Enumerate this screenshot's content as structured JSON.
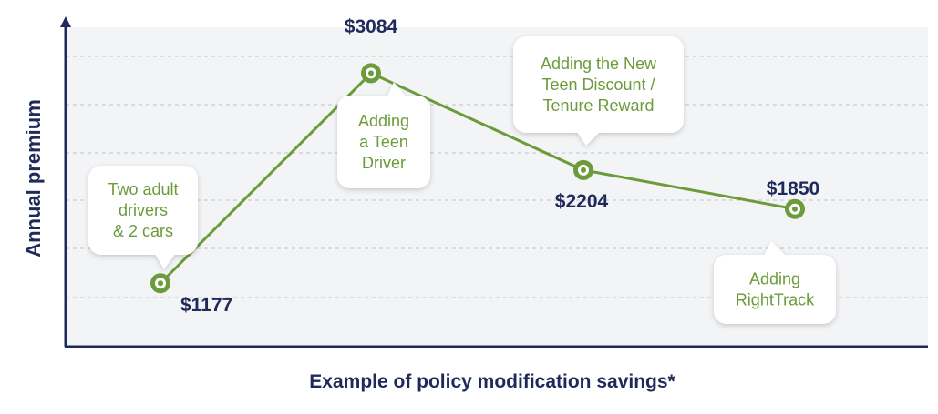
{
  "colors": {
    "axis": "#1f2a5a",
    "line": "#6b9b3a",
    "label": "#1f2a5a",
    "callout_text": "#6b9b3a",
    "callout_bg": "#ffffff",
    "plot_bg": "#f3f4f6",
    "grid": "#c9ccd3"
  },
  "chart_data": {
    "type": "line",
    "xlabel": "Example of policy modification savings*",
    "ylabel": "Annual premium",
    "grid": true,
    "ylim": [
      600,
      3500
    ],
    "points": [
      {
        "step": 1,
        "value": 1177,
        "value_label": "$1177",
        "note": "Two adult\ndrivers\n& 2 cars"
      },
      {
        "step": 2,
        "value": 3084,
        "value_label": "$3084",
        "note": "Adding\na Teen\nDriver"
      },
      {
        "step": 3,
        "value": 2204,
        "value_label": "$2204",
        "note": "Adding the New\nTeen Discount /\nTenure Reward"
      },
      {
        "step": 4,
        "value": 1850,
        "value_label": "$1850",
        "note": "Adding\nRightTrack"
      }
    ]
  }
}
